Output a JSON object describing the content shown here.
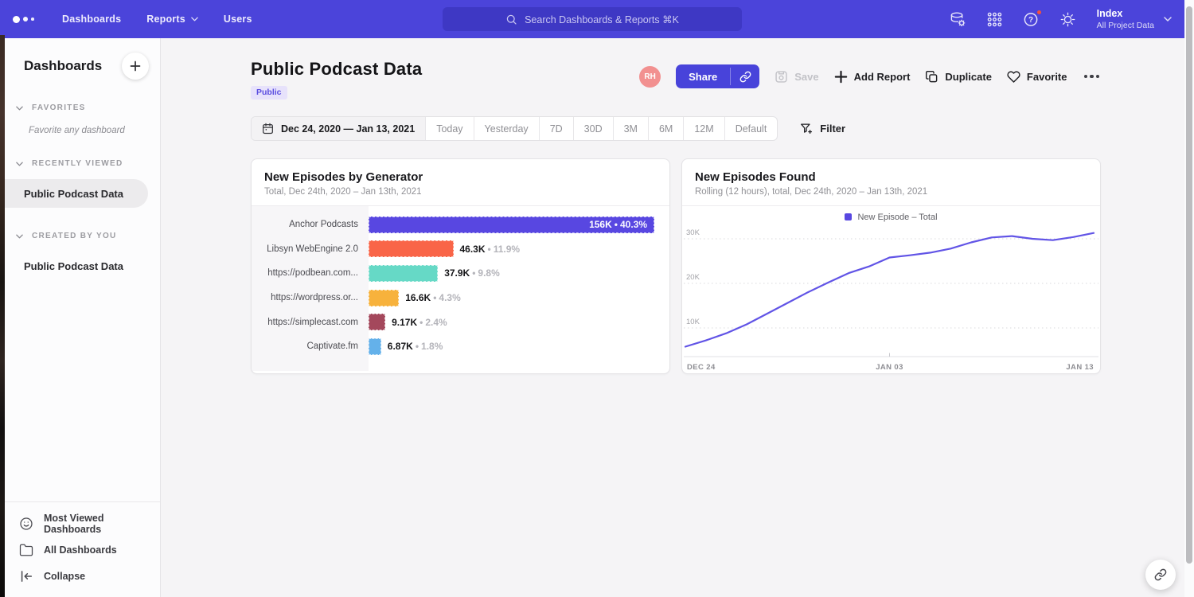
{
  "topbar": {
    "nav": [
      {
        "label": "Dashboards",
        "chevron": false
      },
      {
        "label": "Reports",
        "chevron": true
      },
      {
        "label": "Users",
        "chevron": false
      }
    ],
    "search": {
      "placeholder": "Search Dashboards & Reports ⌘K"
    },
    "right_icons": [
      {
        "name": "data-sources-icon",
        "badge": false
      },
      {
        "name": "apps-grid-icon",
        "badge": false
      },
      {
        "name": "help-icon",
        "badge": true
      },
      {
        "name": "settings-icon",
        "badge": false
      }
    ],
    "project": {
      "name": "Index",
      "scope": "All Project Data"
    }
  },
  "sidebar": {
    "title": "Dashboards",
    "sections": [
      {
        "label": "FAVORITES",
        "empty_text": "Favorite any dashboard",
        "items": []
      },
      {
        "label": "RECENTLY VIEWED",
        "items": [
          {
            "label": "Public Podcast Data",
            "selected": true
          }
        ]
      },
      {
        "label": "CREATED BY YOU",
        "items": [
          {
            "label": "Public Podcast Data",
            "selected": false
          }
        ]
      }
    ],
    "footer_items": [
      {
        "label": "Most Viewed Dashboards",
        "icon": "smile-icon"
      },
      {
        "label": "All Dashboards",
        "icon": "folder-icon"
      },
      {
        "label": "Collapse",
        "icon": "collapse-icon"
      }
    ]
  },
  "page": {
    "title": "Public Podcast Data",
    "visibility_badge": "Public",
    "avatar_initials": "RH",
    "actions": {
      "share": "Share",
      "save": "Save",
      "add_report": "Add Report",
      "duplicate": "Duplicate",
      "favorite": "Favorite"
    },
    "date_range": "Dec 24, 2020 — Jan 13, 2021",
    "date_presets": [
      "Today",
      "Yesterday",
      "7D",
      "30D",
      "3M",
      "6M",
      "12M",
      "Default"
    ],
    "filter_label": "Filter"
  },
  "chart_data": [
    {
      "type": "bar",
      "orientation": "horizontal",
      "title": "New Episodes by Generator",
      "subtitle": "Total, Dec 24th, 2020 – Jan 13th, 2021",
      "categories": [
        "Anchor Podcasts",
        "Libsyn WebEngine 2.0",
        "https://podbean.com...",
        "https://wordpress.or...",
        "https://simplecast.com",
        "Captivate.fm"
      ],
      "values": [
        156000,
        46300,
        37900,
        16600,
        9170,
        6870
      ],
      "value_labels": [
        "156K",
        "46.3K",
        "37.9K",
        "16.6K",
        "9.17K",
        "6.87K"
      ],
      "percent_labels": [
        "40.3%",
        "11.9%",
        "9.8%",
        "4.3%",
        "2.4%",
        "1.8%"
      ],
      "label_separator": "•",
      "bar_colors": [
        "#5847E1",
        "#F96548",
        "#66D9C6",
        "#F7B23C",
        "#A4485C",
        "#64B1EA"
      ],
      "xlim": [
        0,
        156000
      ],
      "grid": "off"
    },
    {
      "type": "line",
      "title": "New Episodes Found",
      "subtitle": "Rolling (12 hours), total, Dec 24th, 2020 – Jan 13th, 2021",
      "legend": [
        {
          "label": "New Episode – Total",
          "color": "#5847E1"
        }
      ],
      "legend_position": "top-center",
      "x": [
        "Dec 24",
        "Dec 25",
        "Dec 26",
        "Dec 27",
        "Dec 28",
        "Dec 29",
        "Dec 30",
        "Dec 31",
        "Jan 01",
        "Jan 02",
        "Jan 03",
        "Jan 04",
        "Jan 05",
        "Jan 06",
        "Jan 07",
        "Jan 08",
        "Jan 09",
        "Jan 10",
        "Jan 11",
        "Jan 12",
        "Jan 13"
      ],
      "values": [
        5800,
        7200,
        8800,
        10800,
        13200,
        15600,
        18000,
        20200,
        22300,
        23800,
        25800,
        26300,
        26900,
        27800,
        29200,
        30300,
        30600,
        30000,
        29700,
        30400,
        31300
      ],
      "x_tick_labels": [
        "DEC 24",
        "JAN 03",
        "JAN 13"
      ],
      "y_ticks": [
        10000,
        20000,
        30000
      ],
      "y_tick_labels": [
        "10K",
        "20K",
        "30K"
      ],
      "ylim": [
        3500,
        33500
      ],
      "grid": "horizontal-dotted",
      "line_color": "#6154E6"
    }
  ],
  "colors": {
    "brand": "#4B44DA",
    "help_badge": "#F4503C",
    "avatar_bg": "#F29090",
    "badge_bg": "#E7E2FB",
    "badge_text": "#5B4EE0"
  }
}
